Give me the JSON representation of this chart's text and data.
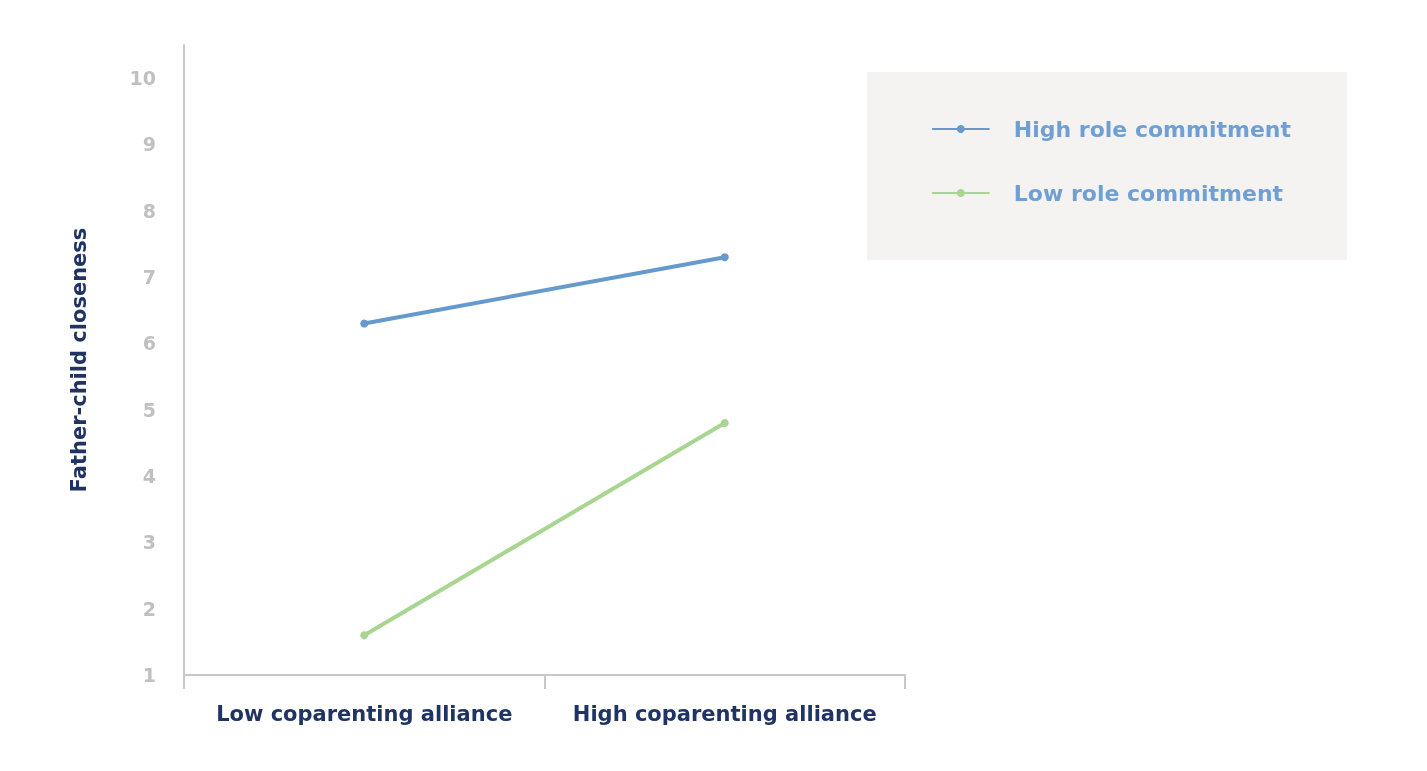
{
  "chart_data": {
    "type": "line",
    "ylabel": "Father-child closeness",
    "categories": [
      "Low coparenting alliance",
      "High coparenting alliance"
    ],
    "series": [
      {
        "name": "High role commitment",
        "color": "#6699cc",
        "values": [
          6.3,
          7.3
        ]
      },
      {
        "name": "Low role commitment",
        "color": "#a8d58f",
        "values": [
          1.6,
          4.8
        ]
      }
    ],
    "ylim": [
      1,
      10.5
    ],
    "yticks": [
      1,
      2,
      3,
      4,
      5,
      6,
      7,
      8,
      9,
      10
    ],
    "grid": false,
    "legend": "top right",
    "marker": "circle",
    "line_style": "solid"
  }
}
